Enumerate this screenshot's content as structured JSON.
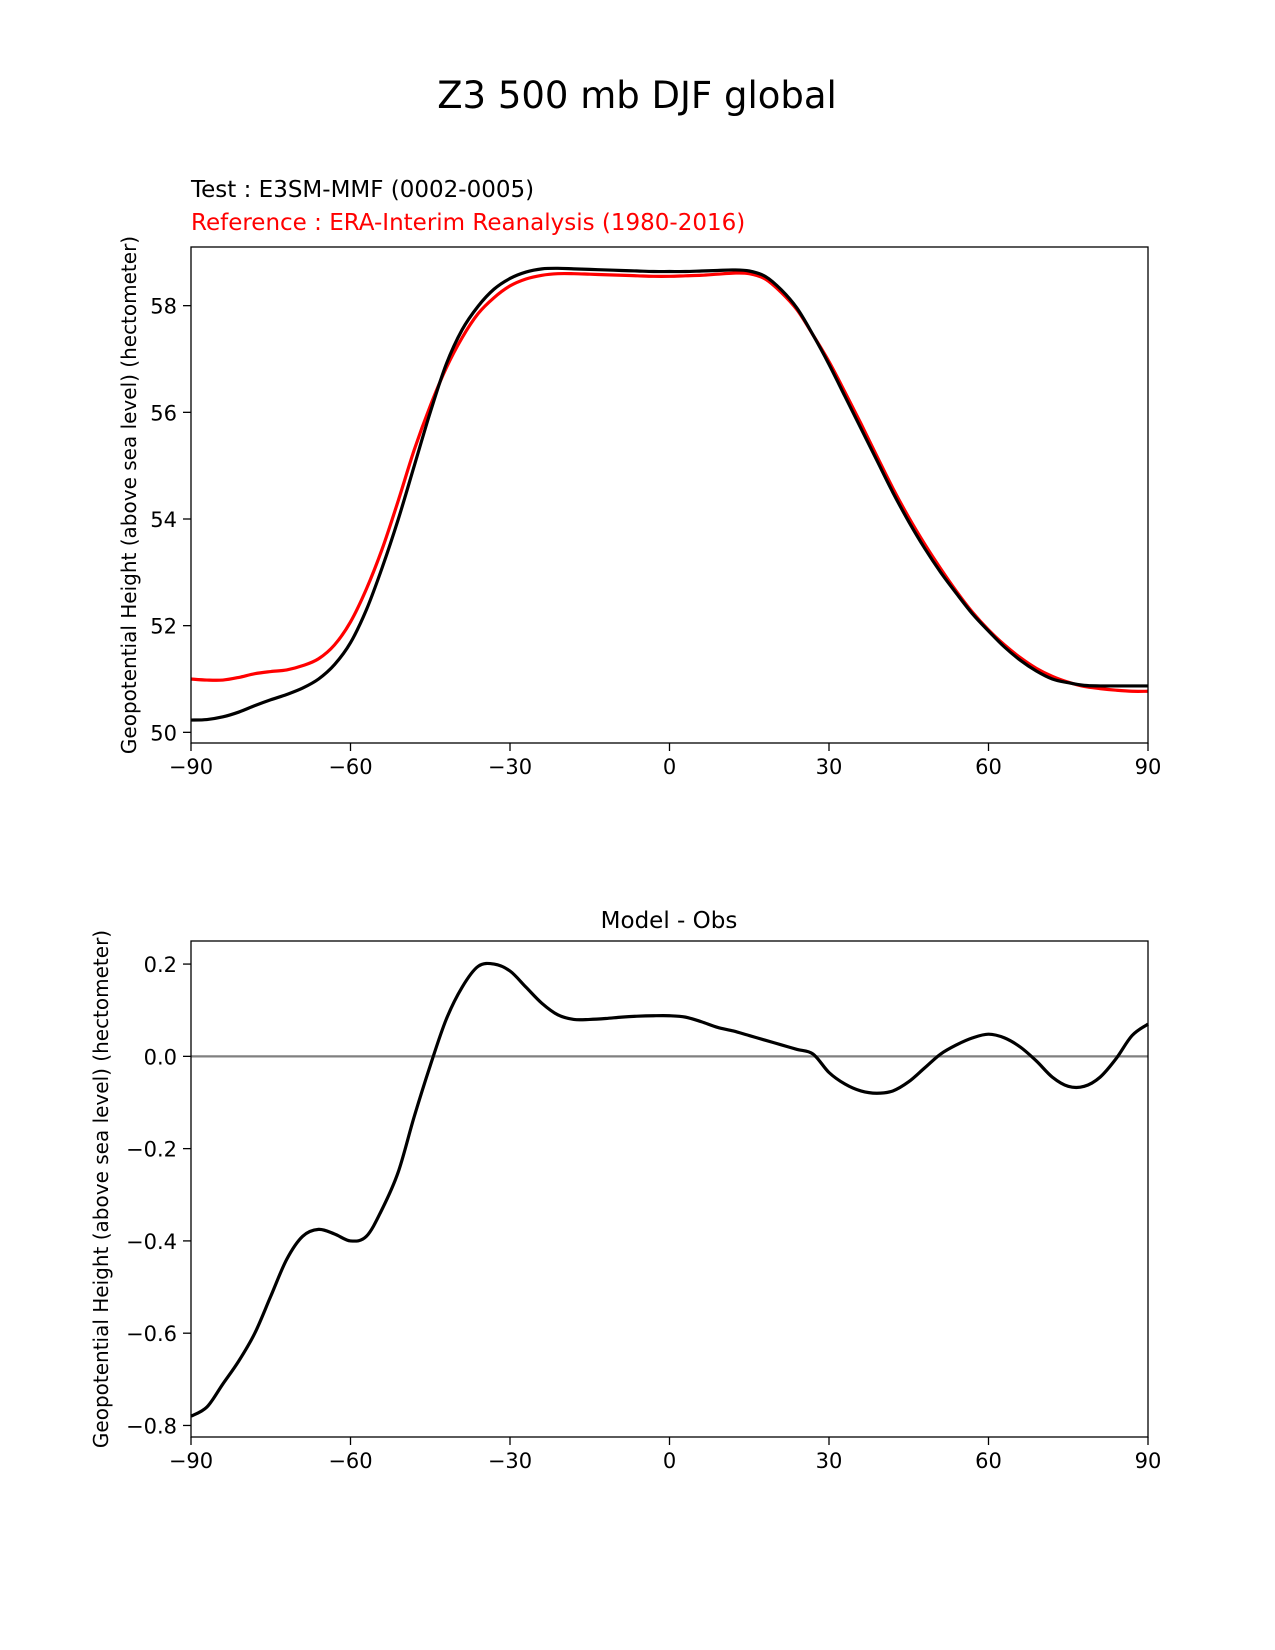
{
  "figure_title": "Z3 500 mb DJF global",
  "colors": {
    "test": "#000000",
    "reference": "#ff0000",
    "zero_line": "#808080",
    "axes": "#000000"
  },
  "chart_data": [
    {
      "type": "line",
      "test_label": "Test : E3SM-MMF (0002-0005)",
      "reference_label": "Reference : ERA-Interim Reanalysis (1980-2016)",
      "xlabel": "",
      "ylabel": "Geopotential Height (above sea level) (hectometer)",
      "xlim": [
        -90,
        90
      ],
      "ylim": [
        49.8,
        59.1
      ],
      "xticks": [
        -90,
        -60,
        -30,
        0,
        30,
        60,
        90
      ],
      "xtick_labels": [
        "−90",
        "−60",
        "−30",
        "0",
        "30",
        "60",
        "90"
      ],
      "yticks": [
        50,
        52,
        54,
        56,
        58
      ],
      "ytick_labels": [
        "50",
        "52",
        "54",
        "56",
        "58"
      ],
      "series": [
        {
          "name": "Test",
          "color": "#000000",
          "x": [
            -90,
            -87,
            -84,
            -81,
            -78,
            -75,
            -72,
            -69,
            -66,
            -63,
            -60,
            -57,
            -54,
            -51,
            -48,
            -45,
            -42,
            -39,
            -36,
            -33,
            -30,
            -27,
            -24,
            -21,
            -18,
            -15,
            -12,
            -9,
            -6,
            -3,
            0,
            3,
            6,
            9,
            12,
            15,
            18,
            21,
            24,
            27,
            30,
            33,
            36,
            39,
            42,
            45,
            48,
            51,
            54,
            57,
            60,
            63,
            66,
            69,
            72,
            75,
            78,
            81,
            84,
            87,
            90
          ],
          "y": [
            50.23,
            50.24,
            50.29,
            50.38,
            50.5,
            50.61,
            50.71,
            50.83,
            51.0,
            51.27,
            51.68,
            52.3,
            53.1,
            54.0,
            55.0,
            56.0,
            56.9,
            57.55,
            57.99,
            58.31,
            58.51,
            58.63,
            58.69,
            58.7,
            58.69,
            58.68,
            58.67,
            58.66,
            58.65,
            58.64,
            58.64,
            58.64,
            58.65,
            58.66,
            58.67,
            58.65,
            58.55,
            58.3,
            57.95,
            57.45,
            56.9,
            56.3,
            55.7,
            55.1,
            54.5,
            53.95,
            53.45,
            53.0,
            52.6,
            52.22,
            51.9,
            51.6,
            51.35,
            51.15,
            51.0,
            50.93,
            50.88,
            50.87,
            50.87,
            50.87,
            50.87
          ]
        },
        {
          "name": "Reference",
          "color": "#ff0000",
          "x": [
            -90,
            -87,
            -84,
            -81,
            -78,
            -75,
            -72,
            -69,
            -66,
            -63,
            -60,
            -57,
            -54,
            -51,
            -48,
            -45,
            -42,
            -39,
            -36,
            -33,
            -30,
            -27,
            -24,
            -21,
            -18,
            -15,
            -12,
            -9,
            -6,
            -3,
            0,
            3,
            6,
            9,
            12,
            15,
            18,
            21,
            24,
            27,
            30,
            33,
            36,
            39,
            42,
            45,
            48,
            51,
            54,
            57,
            60,
            63,
            66,
            69,
            72,
            75,
            78,
            81,
            84,
            87,
            90
          ],
          "y": [
            51.0,
            50.98,
            50.98,
            51.03,
            51.1,
            51.14,
            51.17,
            51.25,
            51.38,
            51.64,
            52.07,
            52.69,
            53.45,
            54.35,
            55.3,
            56.12,
            56.83,
            57.4,
            57.85,
            58.15,
            58.37,
            58.5,
            58.57,
            58.6,
            58.6,
            58.59,
            58.58,
            58.57,
            58.56,
            58.55,
            58.55,
            58.56,
            58.57,
            58.59,
            58.61,
            58.6,
            58.5,
            58.25,
            57.92,
            57.45,
            56.95,
            56.38,
            55.79,
            55.18,
            54.58,
            54.03,
            53.53,
            53.07,
            52.64,
            52.25,
            51.92,
            51.64,
            51.4,
            51.2,
            51.05,
            50.94,
            50.86,
            50.82,
            50.79,
            50.77,
            50.77
          ]
        }
      ]
    },
    {
      "type": "line",
      "title": "Model - Obs",
      "xlabel": "",
      "ylabel": "Geopotential Height (above sea level) (hectometer)",
      "xlim": [
        -90,
        90
      ],
      "ylim": [
        -0.825,
        0.25
      ],
      "xticks": [
        -90,
        -60,
        -30,
        0,
        30,
        60,
        90
      ],
      "xtick_labels": [
        "−90",
        "−60",
        "−30",
        "0",
        "30",
        "60",
        "90"
      ],
      "yticks": [
        -0.8,
        -0.6,
        -0.4,
        -0.2,
        0.0,
        0.2
      ],
      "ytick_labels": [
        "−0.8",
        "−0.6",
        "−0.4",
        "−0.2",
        "0.0",
        "0.2"
      ],
      "zero_line": 0.0,
      "series": [
        {
          "name": "Model - Obs",
          "color": "#000000",
          "x": [
            -90,
            -87,
            -84,
            -81,
            -78,
            -75,
            -72,
            -69,
            -66,
            -63,
            -60,
            -57,
            -54,
            -51,
            -48,
            -45,
            -42,
            -39,
            -36,
            -33,
            -30,
            -27,
            -24,
            -21,
            -18,
            -15,
            -12,
            -9,
            -6,
            -3,
            0,
            3,
            6,
            9,
            12,
            15,
            18,
            21,
            24,
            27,
            30,
            33,
            36,
            39,
            42,
            45,
            48,
            51,
            54,
            57,
            60,
            63,
            66,
            69,
            72,
            75,
            78,
            81,
            84,
            87,
            90
          ],
          "y": [
            -0.78,
            -0.76,
            -0.71,
            -0.66,
            -0.6,
            -0.52,
            -0.44,
            -0.39,
            -0.375,
            -0.385,
            -0.4,
            -0.39,
            -0.33,
            -0.25,
            -0.13,
            -0.02,
            0.08,
            0.15,
            0.195,
            0.2,
            0.185,
            0.15,
            0.115,
            0.09,
            0.08,
            0.08,
            0.082,
            0.085,
            0.087,
            0.088,
            0.088,
            0.085,
            0.075,
            0.063,
            0.055,
            0.045,
            0.035,
            0.025,
            0.015,
            0.005,
            -0.035,
            -0.06,
            -0.075,
            -0.08,
            -0.075,
            -0.055,
            -0.025,
            0.005,
            0.025,
            0.04,
            0.048,
            0.04,
            0.02,
            -0.01,
            -0.045,
            -0.065,
            -0.065,
            -0.045,
            -0.005,
            0.045,
            0.07
          ]
        }
      ]
    }
  ]
}
